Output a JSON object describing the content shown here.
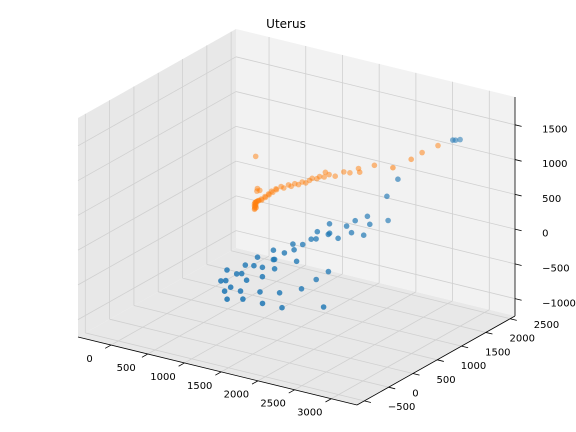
{
  "chart_data": {
    "type": "scatter3d",
    "title": "Uterus",
    "xlabel": "",
    "ylabel": "",
    "zlabel": "",
    "x_ticks": [
      "0",
      "500",
      "1000",
      "1500",
      "2000",
      "2500",
      "3000"
    ],
    "y_ticks": [
      "−500",
      "0",
      "500",
      "1000",
      "1500",
      "2000",
      "2500"
    ],
    "z_ticks": [
      "−1000",
      "−500",
      "0",
      "500",
      "1000",
      "1500"
    ],
    "grid": true,
    "colors": {
      "series1": "#1f77b4",
      "series2": "#ff7f0e",
      "pane": "#f2f2f2",
      "pane_dark": "#e8e8e8",
      "grid": "#d0d0d0"
    },
    "series": [
      {
        "color": "#1f77b4",
        "points_xyz": [
          [
            2900,
            2000,
            1400
          ],
          [
            2950,
            1980,
            1420
          ],
          [
            2960,
            2060,
            1400
          ],
          [
            2400,
            1400,
            700
          ],
          [
            2450,
            1550,
            900
          ],
          [
            2200,
            1300,
            400
          ],
          [
            2300,
            1200,
            350
          ],
          [
            2350,
            1500,
            300
          ],
          [
            2050,
            1100,
            300
          ],
          [
            2150,
            1050,
            250
          ],
          [
            2250,
            1150,
            200
          ],
          [
            2100,
            1200,
            350
          ],
          [
            1900,
            950,
            200
          ],
          [
            2000,
            1000,
            150
          ],
          [
            1850,
            1050,
            300
          ],
          [
            1950,
            900,
            250
          ],
          [
            1700,
            900,
            100
          ],
          [
            1800,
            850,
            150
          ],
          [
            1650,
            800,
            50
          ],
          [
            1750,
            950,
            200
          ],
          [
            1600,
            700,
            0
          ],
          [
            1500,
            650,
            -50
          ],
          [
            1700,
            600,
            -100
          ],
          [
            1550,
            750,
            50
          ],
          [
            1400,
            600,
            -150
          ],
          [
            1450,
            500,
            -100
          ],
          [
            1350,
            650,
            -50
          ],
          [
            1500,
            450,
            -200
          ],
          [
            1300,
            500,
            -250
          ],
          [
            1250,
            400,
            -200
          ],
          [
            1400,
            350,
            -300
          ],
          [
            1200,
            550,
            -150
          ],
          [
            1150,
            300,
            -300
          ],
          [
            1100,
            450,
            -250
          ],
          [
            1250,
            250,
            -350
          ],
          [
            1050,
            350,
            -350
          ],
          [
            1000,
            200,
            -400
          ],
          [
            950,
            300,
            -300
          ],
          [
            1100,
            150,
            -450
          ],
          [
            900,
            250,
            -450
          ],
          [
            1050,
            100,
            -500
          ],
          [
            1200,
            200,
            -500
          ],
          [
            1300,
            100,
            -550
          ],
          [
            1150,
            0,
            -550
          ],
          [
            1400,
            300,
            -500
          ],
          [
            1500,
            200,
            -600
          ],
          [
            1600,
            400,
            -500
          ],
          [
            1700,
            300,
            -650
          ],
          [
            2200,
            400,
            -550
          ],
          [
            1800,
            550,
            -450
          ],
          [
            1900,
            700,
            -350
          ],
          [
            2000,
            800,
            -250
          ]
        ]
      },
      {
        "color": "#ff7f0e",
        "points_xyz": [
          [
            2500,
            2300,
            1100
          ],
          [
            2350,
            2200,
            1000
          ],
          [
            2300,
            2050,
            950
          ],
          [
            2150,
            1900,
            850
          ],
          [
            1700,
            2200,
            650
          ],
          [
            1500,
            2200,
            500
          ],
          [
            1450,
            2250,
            520
          ],
          [
            1300,
            2300,
            400
          ],
          [
            1250,
            2250,
            420
          ],
          [
            1100,
            2300,
            300
          ],
          [
            1050,
            2250,
            330
          ],
          [
            1000,
            2250,
            350
          ],
          [
            950,
            2300,
            250
          ],
          [
            900,
            2280,
            250
          ],
          [
            850,
            2300,
            200
          ],
          [
            800,
            2280,
            200
          ],
          [
            750,
            2300,
            150
          ],
          [
            700,
            2300,
            100
          ],
          [
            650,
            2300,
            100
          ],
          [
            600,
            2300,
            50
          ],
          [
            550,
            2300,
            50
          ],
          [
            500,
            2300,
            0
          ],
          [
            450,
            2320,
            0
          ],
          [
            400,
            2300,
            -50
          ],
          [
            350,
            2320,
            -50
          ],
          [
            300,
            2300,
            -100
          ],
          [
            280,
            2320,
            -100
          ],
          [
            250,
            2300,
            -150
          ],
          [
            220,
            2320,
            -150
          ],
          [
            200,
            2300,
            -200
          ],
          [
            180,
            2320,
            -200
          ],
          [
            150,
            2300,
            -250
          ],
          [
            130,
            2320,
            -250
          ],
          [
            100,
            2300,
            -300
          ],
          [
            80,
            2320,
            -300
          ],
          [
            60,
            2300,
            -320
          ],
          [
            40,
            2320,
            -330
          ],
          [
            30,
            2300,
            -340
          ],
          [
            20,
            2320,
            -350
          ],
          [
            10,
            2300,
            -360
          ],
          [
            0,
            2320,
            -370
          ],
          [
            0,
            2300,
            -380
          ],
          [
            5,
            2320,
            -390
          ],
          [
            10,
            2310,
            -400
          ],
          [
            0,
            2300,
            -410
          ],
          [
            0,
            2320,
            -420
          ],
          [
            5,
            2300,
            -430
          ],
          [
            10,
            2320,
            -440
          ],
          [
            0,
            2310,
            -450
          ],
          [
            0,
            2300,
            -460
          ],
          [
            20,
            2320,
            -200
          ],
          [
            10,
            2310,
            300
          ],
          [
            40,
            2300,
            -150
          ],
          [
            60,
            2320,
            -180
          ]
        ]
      }
    ]
  }
}
